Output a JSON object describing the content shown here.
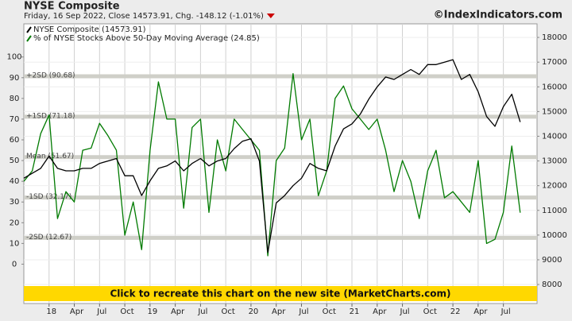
{
  "chart_data": {
    "type": "line",
    "title": "NYSE Composite",
    "subtitle": "Friday, 16 Sep 2022, Close 14573.91, Chg. -148.12 (-1.01%)",
    "source": "©IndexIndicators.com",
    "banner": "Click to recreate this chart on the new site (MarketCharts.com)",
    "x": [
      "2017-10",
      "2017-11",
      "2017-12",
      "2018-01",
      "2018-02",
      "2018-03",
      "2018-04",
      "2018-05",
      "2018-06",
      "2018-07",
      "2018-08",
      "2018-09",
      "2018-10",
      "2018-11",
      "2018-12",
      "2019-01",
      "2019-02",
      "2019-03",
      "2019-04",
      "2019-05",
      "2019-06",
      "2019-07",
      "2019-08",
      "2019-09",
      "2019-10",
      "2019-11",
      "2019-12",
      "2020-01",
      "2020-02",
      "2020-03",
      "2020-04",
      "2020-05",
      "2020-06",
      "2020-07",
      "2020-08",
      "2020-09",
      "2020-10",
      "2020-11",
      "2020-12",
      "2021-01",
      "2021-02",
      "2021-03",
      "2021-04",
      "2021-05",
      "2021-06",
      "2021-07",
      "2021-08",
      "2021-09",
      "2021-10",
      "2021-11",
      "2021-12",
      "2022-01",
      "2022-02",
      "2022-03",
      "2022-04",
      "2022-05",
      "2022-06",
      "2022-07",
      "2022-08",
      "2022-09"
    ],
    "series": [
      {
        "name": "NYSE Composite (14573.91)",
        "color": "#000000",
        "axis": "y2",
        "values": [
          12300,
          12500,
          12700,
          13200,
          12700,
          12600,
          12600,
          12700,
          12700,
          12900,
          13000,
          13100,
          12400,
          12400,
          11600,
          12200,
          12700,
          12800,
          13000,
          12600,
          12900,
          13100,
          12800,
          13000,
          13100,
          13500,
          13800,
          13900,
          13000,
          9300,
          11300,
          11600,
          12000,
          12300,
          12900,
          12700,
          12600,
          13600,
          14300,
          14500,
          14900,
          15500,
          16000,
          16400,
          16300,
          16500,
          16700,
          16500,
          16900,
          16900,
          17000,
          17100,
          16300,
          16500,
          15800,
          14800,
          14400,
          15200,
          15700,
          14573.91
        ]
      },
      {
        "name": "% of NYSE Stocks Above 50-Day Moving Average (24.85)",
        "color": "#007a00",
        "values": [
          40,
          45,
          63,
          72,
          22,
          35,
          30,
          55,
          56,
          68,
          62,
          55,
          14,
          30,
          7,
          55,
          88,
          70,
          70,
          27,
          66,
          70,
          25,
          60,
          45,
          70,
          65,
          60,
          55,
          4,
          50,
          56,
          92,
          60,
          70,
          33,
          45,
          80,
          86,
          75,
          70,
          65,
          70,
          55,
          35,
          50,
          40,
          22,
          45,
          55,
          32,
          35,
          30,
          25,
          50,
          10,
          12,
          25,
          57,
          24.85
        ]
      }
    ],
    "xlim": [
      "2017-10",
      "2022-11"
    ],
    "xticks": [
      {
        "value": "2018-01",
        "label": "18"
      },
      {
        "value": "2018-04",
        "label": "Apr"
      },
      {
        "value": "2018-07",
        "label": "Jul"
      },
      {
        "value": "2018-10",
        "label": "Oct"
      },
      {
        "value": "2019-01",
        "label": "19"
      },
      {
        "value": "2019-04",
        "label": "Apr"
      },
      {
        "value": "2019-07",
        "label": "Jul"
      },
      {
        "value": "2019-10",
        "label": "Oct"
      },
      {
        "value": "2020-01",
        "label": "20"
      },
      {
        "value": "2020-04",
        "label": "Apr"
      },
      {
        "value": "2020-07",
        "label": "Jul"
      },
      {
        "value": "2020-10",
        "label": "Oct"
      },
      {
        "value": "2021-01",
        "label": "21"
      },
      {
        "value": "2021-04",
        "label": "Apr"
      },
      {
        "value": "2021-07",
        "label": "Jul"
      },
      {
        "value": "2021-10",
        "label": "Oct"
      },
      {
        "value": "2022-01",
        "label": "22"
      },
      {
        "value": "2022-04",
        "label": "Apr"
      },
      {
        "value": "2022-07",
        "label": "Jul"
      }
    ],
    "ylim": [
      -19,
      116
    ],
    "yticks": [
      0,
      10,
      20,
      30,
      40,
      50,
      60,
      70,
      80,
      90,
      100
    ],
    "y2lim": [
      7230,
      18550
    ],
    "y2ticks": [
      8000,
      9000,
      10000,
      11000,
      12000,
      13000,
      14000,
      15000,
      16000,
      17000,
      18000
    ],
    "annotations": [
      {
        "label": "+2SD (90.68)",
        "value": 90.68
      },
      {
        "label": "+1SD (71.18)",
        "value": 71.18
      },
      {
        "label": "Mean (51.67)",
        "value": 51.67
      },
      {
        "label": "-1SD (32.17)",
        "value": 32.17
      },
      {
        "label": "-2SD (12.67)",
        "value": 12.67
      }
    ],
    "grid": true
  }
}
